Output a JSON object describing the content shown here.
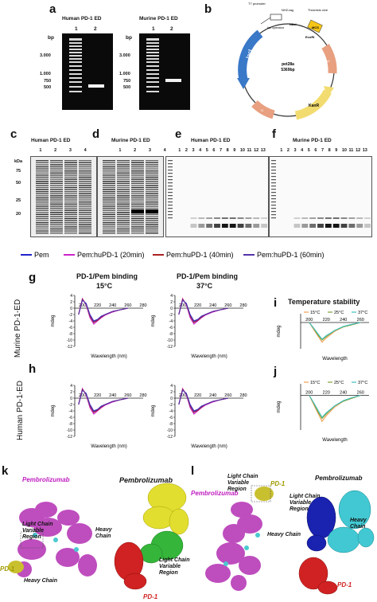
{
  "panels": {
    "a": "a",
    "b": "b",
    "c": "c",
    "d": "d",
    "e": "e",
    "f": "f",
    "g": "g",
    "h": "h",
    "i": "i",
    "j": "j",
    "k": "k",
    "l": "l"
  },
  "gel_a": {
    "human_title": "Human PD-1 ED",
    "murine_title": "Murine PD-1 ED",
    "lane1": "1",
    "lane2": "2",
    "bp": "bp",
    "ladder": [
      "3.000",
      "1.000",
      "750",
      "500"
    ]
  },
  "plasmid": {
    "name": "pet28a",
    "size": "5369bp",
    "labels": {
      "t7_promoter": "T7 promoter",
      "lac_operator": "lac operator",
      "his_tag": "NH2-tag",
      "thrombin": "Thrombin clve",
      "ndei": "NdeI",
      "ecori": "EcoRI",
      "mcs": "MCS",
      "laci": "lacI",
      "kan": "KanR",
      "ori": "ori",
      "f1": "f1"
    }
  },
  "sds": {
    "c_title": "Human PD-1 ED",
    "d_title": "Murine PD-1 ED",
    "e_title": "Human PD-1 ED",
    "f_title": "Murine PD-1 ED",
    "kda": "kDa",
    "markers": [
      "75",
      "50",
      "25",
      "20"
    ],
    "lanes_cd": [
      "1",
      "2",
      "3",
      "4"
    ],
    "lanes_ef": [
      "1",
      "2",
      "3",
      "4",
      "5",
      "6",
      "7",
      "8",
      "9",
      "10",
      "11",
      "12",
      "13"
    ]
  },
  "legend": {
    "items": [
      "Pem",
      "Pem:huPD-1 (20min)",
      "Pem:huPD-1 (40min)",
      "Pem:huPD-1 (60min)"
    ],
    "colors": [
      "#2222cc",
      "#cc22cc",
      "#aa2222",
      "#5533aa"
    ]
  },
  "cd": {
    "g_title_15": "PD-1/Pem binding",
    "g_temp_15": "15°C",
    "g_title_37": "PD-1/Pem binding",
    "g_temp_37": "37°C",
    "temp_title": "Temperature stability",
    "row_murine": "Murine PD-1-ED",
    "row_human": "Human PD-1-ED",
    "ylabel": "mdeg",
    "xlabel": "Wavelength (nm)",
    "xlabel_short": "Wavelength",
    "xticks": [
      "200",
      "220",
      "240",
      "260",
      "280"
    ],
    "yticks": [
      "4",
      "2",
      "0",
      "-2",
      "-4",
      "-6",
      "-8",
      "-10",
      "-12"
    ],
    "temp_legend": [
      "15°C",
      "25°C",
      "37°C"
    ],
    "temp_colors": [
      "#f0a050",
      "#7fa23a",
      "#40c0c0"
    ]
  },
  "chart_data": [
    {
      "type": "line",
      "title": "PD-1/Pem binding 15°C",
      "xlabel": "Wavelength (nm)",
      "ylabel": "mdeg",
      "x": [
        195,
        200,
        205,
        210,
        215,
        220,
        225,
        230,
        240,
        250,
        260
      ],
      "series": [
        {
          "name": "Pem",
          "values": [
            -2,
            2.5,
            1.5,
            -2,
            -4,
            -3.5,
            -2.5,
            -2,
            -1,
            -0.5,
            0
          ]
        },
        {
          "name": "Pem:huPD-1 (20min)",
          "values": [
            -2,
            3,
            1,
            -3,
            -5,
            -4,
            -3,
            -2.2,
            -1.2,
            -0.5,
            0
          ]
        },
        {
          "name": "Pem:huPD-1 (40min)",
          "values": [
            -2,
            2.8,
            1.2,
            -2.5,
            -4.5,
            -3.8,
            -2.8,
            -2,
            -1,
            -0.5,
            0
          ]
        },
        {
          "name": "Pem:huPD-1 (60min)",
          "values": [
            -2,
            2.6,
            1.3,
            -2.2,
            -4.2,
            -3.6,
            -2.6,
            -2,
            -1,
            -0.5,
            0
          ]
        }
      ],
      "ylim": [
        -12,
        4
      ],
      "xlim": [
        190,
        280
      ]
    },
    {
      "type": "line",
      "title": "Temperature stability",
      "xlabel": "Wavelength",
      "ylabel": "mdeg",
      "x": [
        200,
        205,
        210,
        215,
        220,
        230,
        240,
        250,
        260
      ],
      "series": [
        {
          "name": "15°C",
          "values": [
            0,
            -1.5,
            -3,
            -4.5,
            -3.5,
            -2,
            -1,
            -0.5,
            0
          ]
        },
        {
          "name": "25°C",
          "values": [
            0,
            -1.3,
            -2.8,
            -4,
            -3.2,
            -1.8,
            -1,
            -0.5,
            0
          ]
        },
        {
          "name": "37°C",
          "values": [
            0,
            -1.2,
            -2.5,
            -3.8,
            -3,
            -1.8,
            -0.9,
            -0.4,
            0
          ]
        }
      ]
    }
  ],
  "structures": {
    "k_pem": "Pembrolizumab",
    "k_pem2": "Pembrolizumab",
    "k_lcvr": "Light Chain Variable Region",
    "k_pd1": "PD-1",
    "k_heavy": "Heavy Chain",
    "k_heavy2": "Heavy Chain",
    "k_lcvr2": "Light Chain Variable Region",
    "k_pd1_2": "PD-1",
    "l_pem": "Pembrolizumab",
    "l_pem2": "Pembrolizumab",
    "l_lcvr": "Light Chain Variable Region",
    "l_pd1": "PD-1",
    "l_heavy": "Heavy Chain",
    "l_lcvr2": "Light Chain Variable Region",
    "l_heavy2": "Heavy Chain",
    "l_pd1_2": "PD-1"
  }
}
